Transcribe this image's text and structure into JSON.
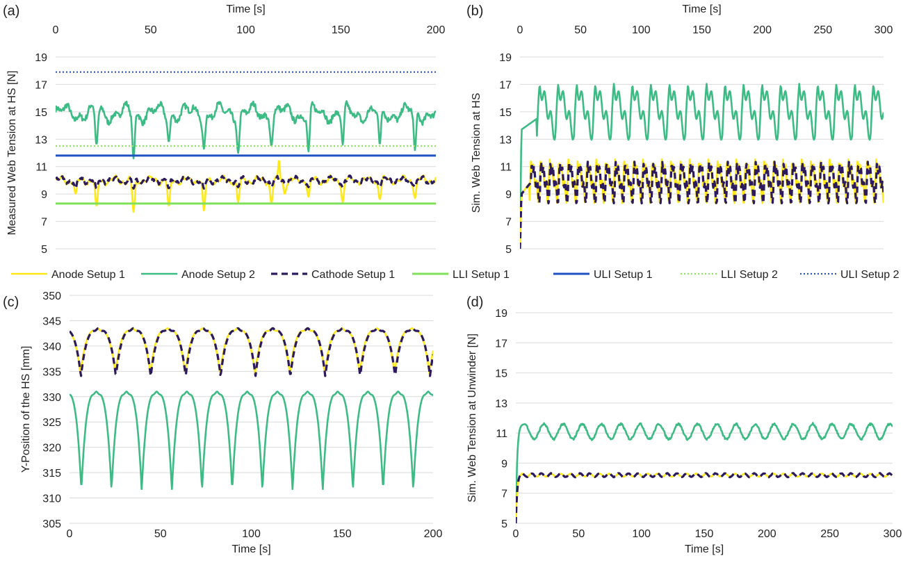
{
  "colors": {
    "anode1": "#ffe81a",
    "anode2": "#3dbb84",
    "cathode1": "#2b1a5e",
    "lli1": "#7fe05a",
    "uli1": "#2150c0",
    "lli2": "#8ee85f",
    "uli2": "#2a52c8",
    "grid": "#d9d9d9"
  },
  "legend": {
    "items": [
      {
        "key": "anode1",
        "label": "Anode Setup 1",
        "style": "solid"
      },
      {
        "key": "anode2",
        "label": "Anode Setup 2",
        "style": "solid"
      },
      {
        "key": "cathode1",
        "label": "Cathode Setup 1",
        "style": "dashed"
      },
      {
        "key": "lli1",
        "label": "LLI Setup 1",
        "style": "solid"
      },
      {
        "key": "uli1",
        "label": "ULI Setup 1",
        "style": "solid"
      },
      {
        "key": "lli2",
        "label": "LLI Setup 2",
        "style": "dotted"
      },
      {
        "key": "uli2",
        "label": "ULI Setup 2",
        "style": "dotted"
      }
    ]
  },
  "chart_data": [
    {
      "panel": "(a)",
      "type": "line",
      "xlabel": "Time [s]",
      "ylabel": "Measured Web Tension at HS [N]",
      "xaxis_position": "top",
      "xlim": [
        0,
        200
      ],
      "xticks": [
        0,
        50,
        100,
        150,
        200
      ],
      "ylim": [
        5,
        19
      ],
      "yticks": [
        5,
        7,
        9,
        11,
        13,
        15,
        17,
        19
      ],
      "series": [
        {
          "key": "anode2",
          "model": "measured",
          "mean": 14.9,
          "amp": 0.45,
          "period": 16.5,
          "dips": [
            [
              21.5,
              12.6
            ],
            [
              41,
              11.6
            ],
            [
              59.5,
              12.8
            ],
            [
              78,
              12.3
            ],
            [
              96,
              12.0
            ],
            [
              113.5,
              12.5
            ],
            [
              133,
              12.1
            ],
            [
              151,
              12.6
            ],
            [
              170.5,
              12.6
            ],
            [
              189,
              12.2
            ]
          ]
        },
        {
          "key": "anode1",
          "model": "measured",
          "mean": 10.0,
          "amp": 0.2,
          "period": 9.5,
          "dips": [
            [
              10.5,
              9.0
            ],
            [
              21.5,
              8.1
            ],
            [
              41,
              7.7
            ],
            [
              59.5,
              8.1
            ],
            [
              78,
              7.8
            ],
            [
              96,
              8.4
            ],
            [
              113.5,
              8.3
            ],
            [
              120.5,
              9.0
            ],
            [
              133,
              8.8
            ],
            [
              151,
              8.4
            ],
            [
              170.5,
              8.6
            ],
            [
              189,
              8.7
            ]
          ],
          "spikes": [
            [
              117.5,
              11.5
            ]
          ]
        },
        {
          "key": "cathode1",
          "model": "measured",
          "mean": 10.0,
          "amp": 0.18,
          "period": 9.5,
          "dips": [
            [
              10.5,
              9.4
            ],
            [
              21.5,
              9.4
            ],
            [
              41,
              9.4
            ],
            [
              59.5,
              9.4
            ],
            [
              78,
              9.4
            ],
            [
              96,
              9.5
            ],
            [
              113.5,
              9.5
            ],
            [
              133,
              9.5
            ],
            [
              151,
              9.5
            ],
            [
              170.5,
              9.5
            ],
            [
              189,
              9.5
            ]
          ]
        },
        {
          "key": "lli1",
          "model": "const",
          "value": 8.3
        },
        {
          "key": "uli1",
          "model": "const",
          "value": 11.8
        },
        {
          "key": "lli2",
          "model": "const",
          "value": 12.5
        },
        {
          "key": "uli2",
          "model": "const",
          "value": 17.9
        }
      ]
    },
    {
      "panel": "(b)",
      "type": "line",
      "xlabel": "Time [s]",
      "ylabel": "Sim. Web Tension at HS",
      "xaxis_position": "top",
      "xlim": [
        0,
        300
      ],
      "xticks": [
        0,
        50,
        100,
        150,
        200,
        250,
        300
      ],
      "ylim": [
        5,
        19
      ],
      "yticks": [
        5,
        7,
        9,
        11,
        13,
        15,
        17,
        19
      ],
      "series": [
        {
          "key": "anode2",
          "model": "periodic",
          "start": 5,
          "base": 14.7,
          "peak": 17.3,
          "trough": 12.8,
          "period": 15.3,
          "phase": 14
        },
        {
          "key": "anode1",
          "model": "periodic",
          "start": 5,
          "base": 10.0,
          "peak": 11.8,
          "trough": 8.2,
          "period": 7.7,
          "phase": 8
        },
        {
          "key": "cathode1",
          "model": "periodic",
          "start": 5,
          "base": 10.0,
          "peak": 11.6,
          "trough": 8.2,
          "period": 7.7,
          "phase": 8.6
        }
      ]
    },
    {
      "panel": "(c)",
      "type": "line",
      "xlabel": "Time [s]",
      "ylabel": "Y-Position of the HS [mm]",
      "xaxis_position": "bottom",
      "xlim": [
        0,
        200
      ],
      "xticks": [
        0,
        50,
        100,
        150,
        200
      ],
      "ylim": [
        305,
        350
      ],
      "yticks": [
        305,
        310,
        315,
        320,
        325,
        330,
        335,
        340,
        345,
        350
      ],
      "series": [
        {
          "key": "anode2",
          "model": "cusp",
          "top": 331.5,
          "bottom": 311.5,
          "period": 16.6,
          "first_min": 6.5
        },
        {
          "key": "anode1",
          "model": "cusp",
          "top": 344.0,
          "bottom": 334.5,
          "period": 19.2,
          "first_min": 6.0
        },
        {
          "key": "cathode1",
          "model": "cusp",
          "top": 344.0,
          "bottom": 334.0,
          "period": 19.2,
          "first_min": 6.3
        }
      ]
    },
    {
      "panel": "(d)",
      "type": "line",
      "xlabel": "Time [s]",
      "ylabel": "Sim. Web Tension at Unwinder [N]",
      "xaxis_position": "bottom",
      "xlim": [
        0,
        300
      ],
      "xticks": [
        0,
        50,
        100,
        150,
        200,
        250,
        300
      ],
      "ylim": [
        5,
        19
      ],
      "yticks": [
        5,
        7,
        9,
        11,
        13,
        15,
        17,
        19
      ],
      "series": [
        {
          "key": "anode2",
          "model": "ripple",
          "start": 5,
          "level": 11.1,
          "amp": 0.5,
          "period": 15.3,
          "rise": 7
        },
        {
          "key": "anode1",
          "model": "ripple",
          "start": 5,
          "level": 8.2,
          "amp": 0.1,
          "period": 7.7,
          "rise": 5
        },
        {
          "key": "cathode1",
          "model": "ripple",
          "start": 5,
          "level": 8.2,
          "amp": 0.12,
          "period": 7.7,
          "rise": 5
        }
      ]
    }
  ]
}
